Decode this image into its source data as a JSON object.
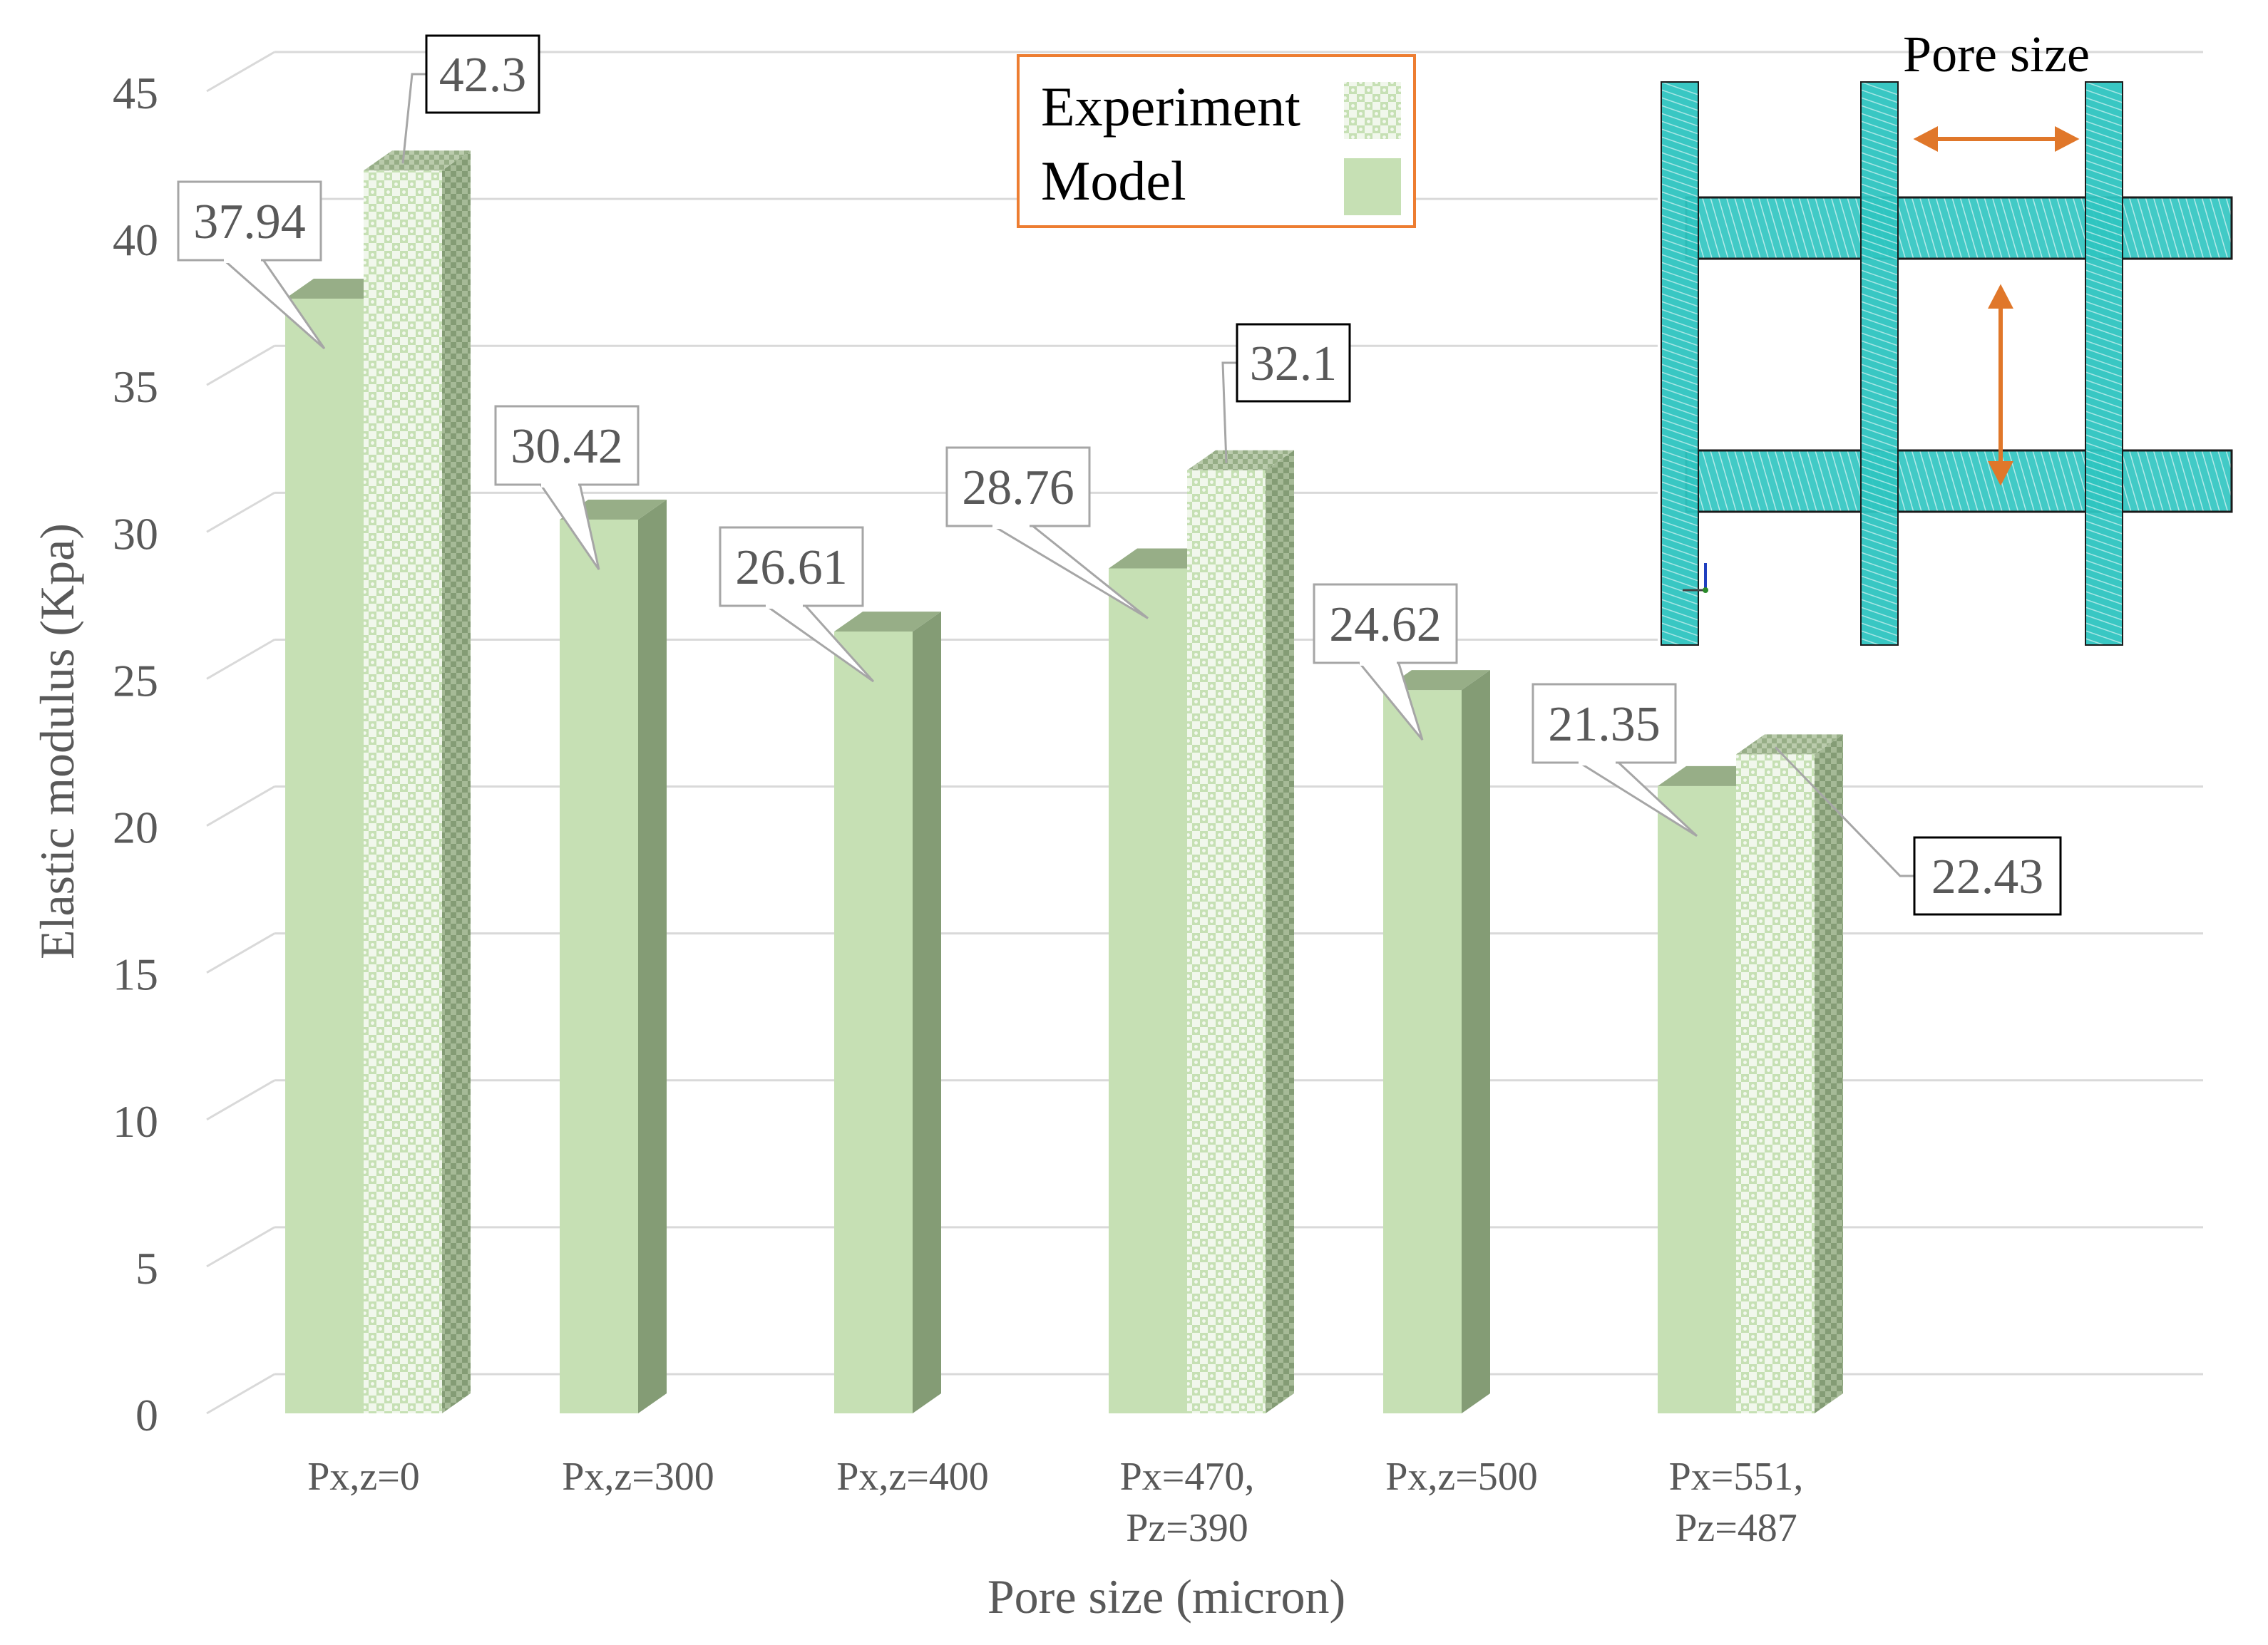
{
  "chart_data": {
    "type": "bar",
    "title": "",
    "xlabel": "Pore size (micron)",
    "ylabel": "Elastic modulus (Kpa)",
    "ylim": [
      0,
      45
    ],
    "yticks": [
      "0",
      "5",
      "10",
      "15",
      "20",
      "25",
      "30",
      "35",
      "40",
      "45"
    ],
    "categories": [
      [
        "Px,z=0"
      ],
      [
        "Px,z=300"
      ],
      [
        "Px,z=400"
      ],
      [
        "Px=470,",
        "Pz=390"
      ],
      [
        "Px,z=500"
      ],
      [
        "Px=551,",
        "Pz=487"
      ]
    ],
    "series": [
      {
        "name": "Model",
        "values": [
          37.94,
          30.42,
          26.61,
          28.76,
          24.62,
          21.35
        ],
        "labels": [
          "37.94",
          "30.42",
          "26.61",
          "28.76",
          "24.62",
          "21.35"
        ]
      },
      {
        "name": "Experiment",
        "values": [
          42.3,
          null,
          null,
          32.1,
          null,
          22.43
        ],
        "labels": [
          "42.3",
          "",
          "",
          "32.1",
          "",
          "22.43"
        ]
      }
    ],
    "legend": {
      "position": "top-center",
      "entries": [
        "Experiment",
        "Model"
      ]
    },
    "grid": true,
    "inset": {
      "title": "Pore size",
      "description": "lattice mesh"
    },
    "colors": {
      "bar_front": "#c6e0b4",
      "bar_side": "#849c75",
      "bar_top": "#97ae87",
      "pattern_light": "#ffffff",
      "grid": "#d9d9d9",
      "axis_text": "#595959",
      "legend_border": "#ed7d31",
      "mesh": "#2ec4c0",
      "arrow": "#e0772a"
    }
  }
}
